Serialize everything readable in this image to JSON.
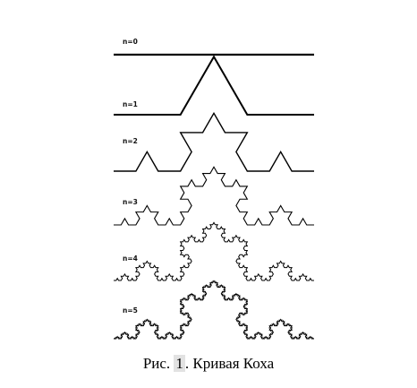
{
  "figure": {
    "rows": [
      {
        "label": "n=0",
        "iteration": 0
      },
      {
        "label": "n=1",
        "iteration": 1
      },
      {
        "label": "n=2",
        "iteration": 2
      },
      {
        "label": "n=3",
        "iteration": 3
      },
      {
        "label": "n=4",
        "iteration": 4
      },
      {
        "label": "n=5",
        "iteration": 5
      }
    ]
  },
  "caption": {
    "prefix": "Рис. ",
    "number": "1",
    "suffix": ". Кривая Коха",
    "number_highlight_color": "#e2e2e2"
  }
}
